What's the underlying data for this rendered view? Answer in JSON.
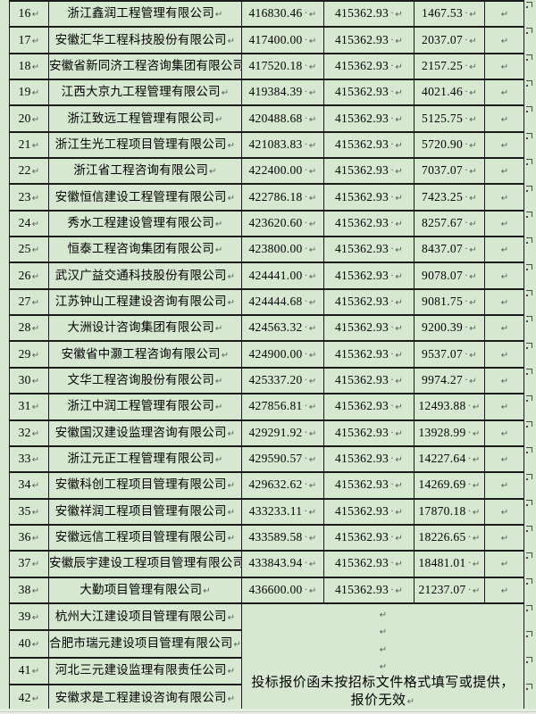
{
  "colors": {
    "cell_green": "#d7e8d1",
    "border": "#1a1a1a",
    "formatting_mark": "#55605a"
  },
  "table": {
    "marks": {
      "pilcrow": "↵",
      "space_dot": "·",
      "end_of_row_mark": "end-of-row-mark"
    },
    "merged_note": "投标报价函未按招标文件格式填写或提供，报价无效",
    "rows": [
      {
        "no": "16",
        "company": "浙江鑫润工程管理有限公司",
        "bid_price": "416830.46",
        "benchmark_price": "415362.93",
        "price_diff": "1467.53"
      },
      {
        "no": "17",
        "company": "安徽汇华工程科技股份有限公司",
        "bid_price": "417400.00",
        "benchmark_price": "415362.93",
        "price_diff": "2037.07"
      },
      {
        "no": "18",
        "company": "安徽省新同济工程咨询集团有限公司",
        "bid_price": "417520.18",
        "benchmark_price": "415362.93",
        "price_diff": "2157.25"
      },
      {
        "no": "19",
        "company": "江西大京九工程管理有限公司",
        "bid_price": "419384.39",
        "benchmark_price": "415362.93",
        "price_diff": "4021.46"
      },
      {
        "no": "20",
        "company": "浙江致远工程管理有限公司",
        "bid_price": "420488.68",
        "benchmark_price": "415362.93",
        "price_diff": "5125.75"
      },
      {
        "no": "21",
        "company": "浙江生光工程项目管理有限公司",
        "bid_price": "421083.83",
        "benchmark_price": "415362.93",
        "price_diff": "5720.90"
      },
      {
        "no": "22",
        "company": "浙江省工程咨询有限公司",
        "bid_price": "422400.00",
        "benchmark_price": "415362.93",
        "price_diff": "7037.07"
      },
      {
        "no": "23",
        "company": "安徽恒信建设工程管理有限公司",
        "bid_price": "422786.18",
        "benchmark_price": "415362.93",
        "price_diff": "7423.25"
      },
      {
        "no": "24",
        "company": "秀水工程建设管理有限公司",
        "bid_price": "423620.60",
        "benchmark_price": "415362.93",
        "price_diff": "8257.67"
      },
      {
        "no": "25",
        "company": "恒泰工程咨询集团有限公司",
        "bid_price": "423800.00",
        "benchmark_price": "415362.93",
        "price_diff": "8437.07"
      },
      {
        "no": "26",
        "company": "武汉广益交通科技股份有限公司",
        "bid_price": "424441.00",
        "benchmark_price": "415362.93",
        "price_diff": "9078.07"
      },
      {
        "no": "27",
        "company": "江苏钟山工程建设咨询有限公司",
        "bid_price": "424444.68",
        "benchmark_price": "415362.93",
        "price_diff": "9081.75"
      },
      {
        "no": "28",
        "company": "大洲设计咨询集团有限公司",
        "bid_price": "424563.32",
        "benchmark_price": "415362.93",
        "price_diff": "9200.39"
      },
      {
        "no": "29",
        "company": "安徽省中灏工程咨询有限公司",
        "bid_price": "424900.00",
        "benchmark_price": "415362.93",
        "price_diff": "9537.07"
      },
      {
        "no": "30",
        "company": "文华工程咨询股份有限公司",
        "bid_price": "425337.20",
        "benchmark_price": "415362.93",
        "price_diff": "9974.27"
      },
      {
        "no": "31",
        "company": "浙江中润工程管理有限公司",
        "bid_price": "427856.81",
        "benchmark_price": "415362.93",
        "price_diff": "12493.88"
      },
      {
        "no": "32",
        "company": "安徽国汉建设监理咨询有限公司",
        "bid_price": "429291.92",
        "benchmark_price": "415362.93",
        "price_diff": "13928.99"
      },
      {
        "no": "33",
        "company": "浙江元正工程管理有限公司",
        "bid_price": "429590.57",
        "benchmark_price": "415362.93",
        "price_diff": "14227.64"
      },
      {
        "no": "34",
        "company": "安徽科创工程项目管理有限公司",
        "bid_price": "429632.62",
        "benchmark_price": "415362.93",
        "price_diff": "14269.69"
      },
      {
        "no": "35",
        "company": "安徽祥润工程项目管理有限公司",
        "bid_price": "433233.11",
        "benchmark_price": "415362.93",
        "price_diff": "17870.18"
      },
      {
        "no": "36",
        "company": "安徽远信工程项目管理有限公司",
        "bid_price": "433589.58",
        "benchmark_price": "415362.93",
        "price_diff": "18226.65"
      },
      {
        "no": "37",
        "company": "安徽辰宇建设工程项目管理有限公司",
        "bid_price": "433843.94",
        "benchmark_price": "415362.93",
        "price_diff": "18481.01"
      },
      {
        "no": "38",
        "company": "大勤项目管理有限公司",
        "bid_price": "436600.00",
        "benchmark_price": "415362.93",
        "price_diff": "21237.07"
      },
      {
        "no": "39",
        "company": "杭州大江建设项目管理有限公司"
      },
      {
        "no": "40",
        "company": "合肥市瑞元建设项目管理有限公司"
      },
      {
        "no": "41",
        "company": "河北三元建设监理有限责任公司"
      },
      {
        "no": "42",
        "company": "安徽求是工程建设咨询有限公司"
      }
    ]
  }
}
